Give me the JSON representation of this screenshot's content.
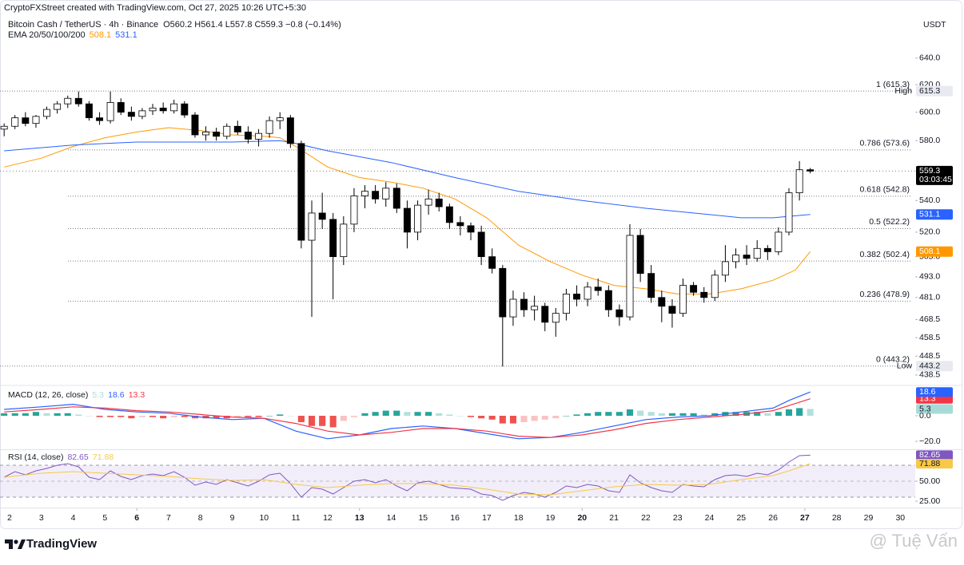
{
  "header": {
    "credit": "CryptoFXStreet created with TradingView.com, Oct 27, 2025 10:26 UTC+5:30"
  },
  "chart_data": [
    {
      "type": "candlestick",
      "title": "Bitcoin Cash / TetherUS · 4h · Binance",
      "subtitle": "O560.2 H561.4 L557.8 C559.3 −0.8 (−0.14%)",
      "currency": "USDT",
      "countdown": "03:03:45",
      "indicator": "EMA 20/50/100/200",
      "log_scale": true,
      "grid": false,
      "up_color": "#ffffff",
      "down_color": "#000000",
      "xlim": [
        1.7,
        30.47
      ],
      "xticks": [
        2,
        3,
        4,
        5,
        6,
        7,
        8,
        9,
        10,
        11,
        12,
        13,
        14,
        15,
        16,
        17,
        18,
        19,
        20,
        21,
        22,
        23,
        24,
        25,
        26,
        27,
        28,
        29,
        30
      ],
      "xticks_bold": [
        6,
        13,
        20,
        27
      ],
      "ylim": [
        433.5,
        673
      ],
      "yticks": [
        {
          "value": 640,
          "label": "640.0"
        },
        {
          "value": 620,
          "label": "620.0"
        },
        {
          "value": 600,
          "label": "600.0"
        },
        {
          "value": 580,
          "label": "580.0"
        },
        {
          "value": 540,
          "label": "540.0"
        },
        {
          "value": 520,
          "label": "520.0"
        },
        {
          "value": 505,
          "label": "505.0"
        },
        {
          "value": 493,
          "label": "493.0"
        },
        {
          "value": 481,
          "label": "481.0"
        },
        {
          "value": 468.5,
          "label": "468.5"
        },
        {
          "value": 458.5,
          "label": "458.5"
        },
        {
          "value": 448.5,
          "label": "448.5"
        },
        {
          "value": 438.5,
          "label": "438.5"
        }
      ],
      "x": [
        1.83,
        2.17,
        2.5,
        2.83,
        3.17,
        3.5,
        3.83,
        4.17,
        4.5,
        4.83,
        5.17,
        5.5,
        5.83,
        6.17,
        6.5,
        6.83,
        7.17,
        7.5,
        7.83,
        8.17,
        8.5,
        8.83,
        9.17,
        9.5,
        9.83,
        10.17,
        10.5,
        10.83,
        11.17,
        11.5,
        11.83,
        12.17,
        12.5,
        12.83,
        13.17,
        13.5,
        13.83,
        14.17,
        14.5,
        14.83,
        15.17,
        15.5,
        15.83,
        16.17,
        16.5,
        16.83,
        17.17,
        17.5,
        17.83,
        18.17,
        18.5,
        18.83,
        19.17,
        19.5,
        19.83,
        20.17,
        20.5,
        20.83,
        21.17,
        21.5,
        21.83,
        22.17,
        22.5,
        22.83,
        23.17,
        23.5,
        23.83,
        24.17,
        24.5,
        24.83,
        25.17,
        25.5,
        25.83,
        26.17,
        26.5,
        26.83,
        27.17
      ],
      "open": [
        588,
        590,
        596,
        592,
        597,
        602,
        606,
        610,
        606,
        596,
        594,
        607,
        600,
        597,
        601,
        603,
        601,
        606,
        598,
        584,
        586,
        583,
        590,
        586,
        581,
        585,
        594,
        596,
        578,
        515,
        532,
        528,
        505,
        525,
        543,
        546,
        541,
        548,
        535,
        520,
        537,
        541,
        536,
        526,
        524,
        520,
        505,
        498,
        470,
        480,
        474,
        476,
        467,
        472,
        483,
        480,
        487,
        485,
        474,
        470,
        518,
        495,
        481,
        476,
        472,
        488,
        484,
        481,
        494,
        502,
        506,
        504,
        510,
        508,
        520,
        545,
        560.2
      ],
      "high": [
        592,
        598,
        600,
        598,
        604,
        608,
        612,
        615,
        608,
        600,
        615,
        610,
        604,
        603,
        606,
        607,
        609,
        608,
        600,
        590,
        589,
        592,
        594,
        590,
        588,
        597,
        600,
        598,
        580,
        540,
        545,
        532,
        530,
        548,
        550,
        550,
        552,
        551,
        540,
        540,
        547,
        545,
        538,
        530,
        526,
        524,
        510,
        500,
        485,
        484,
        482,
        478,
        475,
        486,
        488,
        490,
        492,
        488,
        477,
        525,
        522,
        500,
        485,
        480,
        492,
        490,
        487,
        497,
        512,
        510,
        512,
        515,
        512,
        523,
        548,
        566,
        561.4
      ],
      "low": [
        583,
        588,
        590,
        589,
        595,
        599,
        603,
        604,
        594,
        591,
        592,
        598,
        594,
        595,
        598,
        599,
        599,
        596,
        582,
        580,
        580,
        581,
        584,
        578,
        576,
        582,
        588,
        575,
        510,
        470,
        522,
        480,
        500,
        520,
        535,
        538,
        536,
        532,
        510,
        515,
        531,
        533,
        522,
        518,
        515,
        500,
        495,
        443,
        465,
        470,
        468,
        462,
        459,
        468,
        476,
        476,
        482,
        470,
        465,
        468,
        490,
        478,
        467,
        464,
        470,
        482,
        478,
        479,
        490,
        498,
        500,
        502,
        503,
        506,
        518,
        540,
        557.8
      ],
      "close": [
        590,
        596,
        592,
        597,
        602,
        606,
        610,
        606,
        596,
        594,
        607,
        600,
        597,
        601,
        603,
        601,
        606,
        598,
        584,
        586,
        583,
        590,
        586,
        581,
        585,
        594,
        596,
        578,
        515,
        532,
        528,
        505,
        525,
        543,
        546,
        541,
        548,
        535,
        520,
        537,
        541,
        536,
        526,
        524,
        520,
        505,
        498,
        470,
        480,
        474,
        476,
        467,
        472,
        483,
        480,
        487,
        485,
        474,
        470,
        518,
        495,
        481,
        476,
        472,
        488,
        484,
        481,
        494,
        502,
        506,
        504,
        510,
        508,
        520,
        545,
        560.2,
        559.3
      ],
      "lines": [
        {
          "color": "#ff9800",
          "x": [
            1.83,
            3,
            4,
            5,
            6,
            7,
            8,
            9,
            10,
            10.5,
            11,
            12,
            13,
            14,
            15,
            16,
            17,
            18,
            19,
            20,
            21,
            22,
            23,
            24,
            25,
            26,
            26.7,
            27.17
          ],
          "values": [
            562,
            568,
            576,
            582,
            586,
            589,
            587,
            584,
            583,
            582,
            576,
            562,
            555,
            552,
            548,
            541,
            529,
            512,
            502,
            494,
            488,
            486,
            483,
            483,
            486,
            491,
            497,
            508.1
          ]
        },
        {
          "color": "#2962ff",
          "x": [
            1.83,
            4,
            6,
            9,
            10.5,
            11,
            12,
            14,
            16,
            18,
            20,
            22,
            24,
            25,
            26,
            27.17
          ],
          "values": [
            573,
            577,
            579,
            579,
            580,
            578,
            573,
            565,
            555,
            546,
            540,
            535,
            531,
            529,
            529,
            531.1
          ]
        }
      ],
      "levels": [
        {
          "label": "1 (615.3)",
          "value": 615.3
        },
        {
          "label": "0.786 (573.6)",
          "value": 573.6
        },
        {
          "label": "0.618 (542.8)",
          "value": 542.8
        },
        {
          "label": "0.5 (522.2)",
          "value": 522.2
        },
        {
          "label": "0.382 (502.4)",
          "value": 502.4
        },
        {
          "label": "0.236 (478.9)",
          "value": 478.9
        },
        {
          "label": "0 (443.2)",
          "value": 443.2
        }
      ],
      "extremes": [
        {
          "label": "High",
          "value": 615.3
        },
        {
          "label": "Low",
          "value": 443.2
        }
      ]
    },
    {
      "type": "macd",
      "title": "MACD (12, 26, close)",
      "histogram": {
        "color_up": "#26a69a",
        "color_down": "#ef5350",
        "values": [
          2,
          2,
          2,
          3,
          2,
          2,
          2,
          1,
          0,
          -1,
          -1,
          -1,
          -2,
          -1,
          -1,
          -2,
          -1,
          -1,
          -2,
          -2,
          -2,
          -2,
          -1,
          -1,
          -1,
          0,
          1,
          0,
          -5,
          -8,
          -8,
          -9,
          -4,
          -1,
          2,
          3,
          4,
          4,
          3,
          3,
          3,
          2,
          1,
          0,
          -1,
          -2,
          -3,
          -6,
          -6,
          -5,
          -4,
          -3,
          -2,
          0,
          1,
          2,
          3,
          3,
          3,
          5,
          4,
          3,
          2,
          2,
          2,
          2,
          1,
          2,
          3,
          3,
          3,
          3,
          2,
          3,
          5,
          6,
          5.3
        ]
      },
      "series": [
        {
          "color": "#2962ff",
          "x": [
            1.83,
            3,
            4,
            5,
            6,
            7,
            8,
            9,
            10,
            11,
            12,
            13,
            14,
            15,
            16,
            17,
            18,
            19,
            20,
            21,
            22,
            23,
            24,
            25,
            26,
            26.5,
            27.17
          ],
          "values": [
            5,
            7,
            9,
            5,
            3,
            2,
            -1,
            -3,
            -2,
            -12,
            -18,
            -15,
            -10,
            -8,
            -10,
            -14,
            -18,
            -17,
            -13,
            -8,
            -3,
            -1,
            0,
            3,
            6,
            12,
            18.6
          ]
        },
        {
          "color": "#f23645",
          "x": [
            1.83,
            3,
            4,
            5,
            6,
            7,
            8,
            9,
            10,
            11,
            12,
            13,
            14,
            15,
            16,
            17,
            18,
            19,
            20,
            21,
            22,
            23,
            24,
            25,
            26,
            26.5,
            27.17
          ],
          "values": [
            3,
            5,
            7,
            6,
            4,
            3,
            1,
            -1,
            -2,
            -6,
            -12,
            -15,
            -13,
            -10,
            -10,
            -12,
            -16,
            -17,
            -15,
            -11,
            -6,
            -3,
            -1,
            1,
            4,
            8,
            13.3
          ]
        }
      ],
      "ylim": [
        -25.6,
        23.1
      ],
      "yticks": [
        {
          "value": 0,
          "label": "0.0"
        },
        {
          "value": -20,
          "label": "−20.0"
        }
      ]
    },
    {
      "type": "rsi",
      "title": "RSI (14, close)",
      "series": [
        {
          "color": "#7e57c2",
          "values": [
            55,
            62,
            58,
            63,
            66,
            70,
            72,
            68,
            55,
            52,
            63,
            56,
            52,
            57,
            59,
            57,
            62,
            55,
            45,
            49,
            46,
            52,
            48,
            44,
            50,
            58,
            60,
            47,
            30,
            42,
            40,
            34,
            42,
            50,
            52,
            48,
            52,
            44,
            38,
            48,
            50,
            46,
            42,
            41,
            40,
            34,
            32,
            26,
            32,
            36,
            34,
            30,
            36,
            44,
            42,
            46,
            44,
            38,
            36,
            58,
            48,
            42,
            38,
            36,
            46,
            44,
            43,
            52,
            57,
            58,
            56,
            60,
            58,
            64,
            74,
            82,
            82.65
          ]
        },
        {
          "color": "#f7c948",
          "x": [
            1.83,
            3,
            4,
            5,
            6,
            7,
            8,
            9,
            10,
            11,
            12,
            13,
            14,
            15,
            16,
            17,
            18,
            19,
            20,
            21,
            22,
            23,
            24,
            25,
            26,
            26.5,
            27.17
          ],
          "values": [
            55,
            60,
            62,
            60,
            58,
            56,
            53,
            51,
            52,
            46,
            42,
            45,
            47,
            47,
            45,
            40,
            34,
            33,
            38,
            43,
            46,
            45,
            46,
            52,
            57,
            63,
            71.88
          ]
        }
      ],
      "ylim": [
        18,
        88
      ],
      "overbought": 70,
      "oversold": 30,
      "yticks": [
        {
          "value": 50,
          "label": "50.00"
        },
        {
          "value": 25,
          "label": "25.00"
        }
      ]
    }
  ],
  "footer": {
    "brand": "TradingView",
    "watermark": "@ Tuệ Vấn"
  }
}
